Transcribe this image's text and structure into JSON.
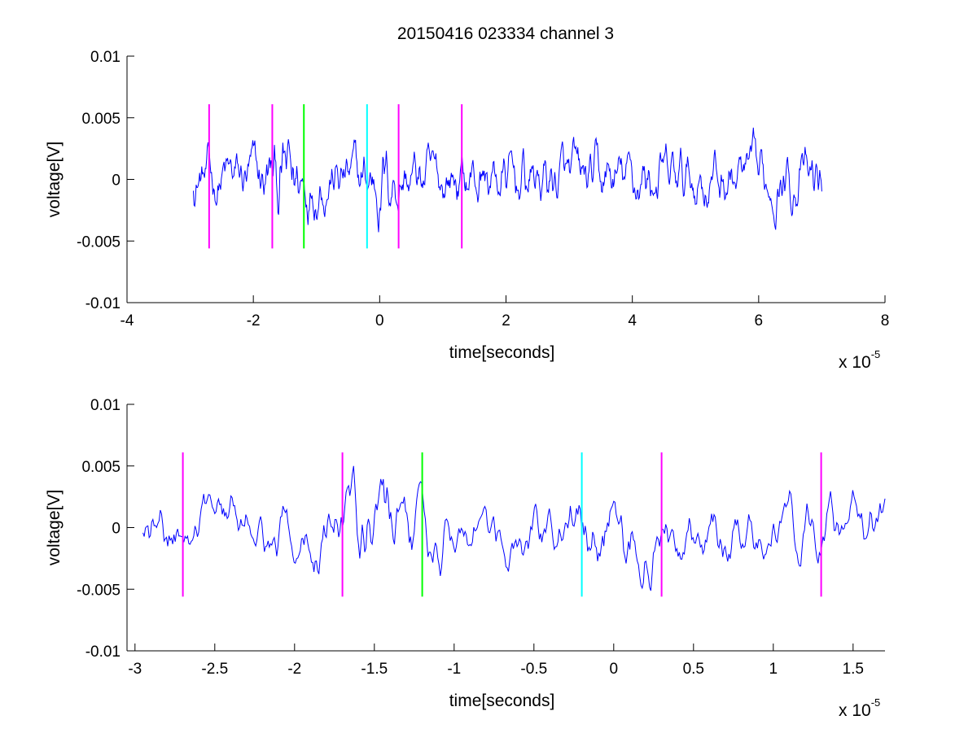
{
  "figure_title": "20150416 023334 channel 3",
  "colors": {
    "signal": "#0000ff",
    "marker_magenta": "#ff00ff",
    "marker_green": "#00ff00",
    "marker_cyan": "#00ffff",
    "axes": "#000000",
    "background": "#ffffff"
  },
  "chart_data": [
    {
      "type": "line",
      "title": "20150416 023334 channel 3",
      "xlabel": "time[seconds]",
      "ylabel": "voltage[V]",
      "x_exponent_base": "x 10",
      "x_exponent": "-5",
      "x_unit_scale": 1e-05,
      "xlim": [
        -4,
        8
      ],
      "ylim": [
        -0.01,
        0.01
      ],
      "x_ticks": [
        -4,
        -2,
        0,
        2,
        4,
        6,
        8
      ],
      "x_tick_labels": [
        "-4",
        "-2",
        "0",
        "2",
        "4",
        "6",
        "8"
      ],
      "y_ticks": [
        -0.01,
        -0.005,
        0,
        0.005,
        0.01
      ],
      "y_tick_labels": [
        "-0.01",
        "-0.005",
        "0",
        "0.005",
        "0.01"
      ],
      "grid": false,
      "series": [
        {
          "color": "#0000ff",
          "x_range": [
            -2.95,
            7.0
          ],
          "samples": 900,
          "description_y_envelope": [
            -0.005,
            0.0055
          ]
        }
      ],
      "markers": [
        {
          "x": -2.7,
          "color": "#ff00ff",
          "y_range": [
            -0.0056,
            0.0061
          ]
        },
        {
          "x": -1.7,
          "color": "#ff00ff",
          "y_range": [
            -0.0056,
            0.0061
          ]
        },
        {
          "x": -1.2,
          "color": "#00ff00",
          "y_range": [
            -0.0056,
            0.0061
          ]
        },
        {
          "x": -0.2,
          "color": "#00ffff",
          "y_range": [
            -0.0056,
            0.0061
          ]
        },
        {
          "x": 0.3,
          "color": "#ff00ff",
          "y_range": [
            -0.0056,
            0.0061
          ]
        },
        {
          "x": 1.3,
          "color": "#ff00ff",
          "y_range": [
            -0.0056,
            0.0061
          ]
        }
      ]
    },
    {
      "type": "line",
      "title": "",
      "xlabel": "time[seconds]",
      "ylabel": "voltage[V]",
      "x_exponent_base": "x 10",
      "x_exponent": "-5",
      "x_unit_scale": 1e-05,
      "xlim": [
        -3.05,
        1.7
      ],
      "ylim": [
        -0.01,
        0.01
      ],
      "x_ticks": [
        -3,
        -2.5,
        -2,
        -1.5,
        -1,
        -0.5,
        0,
        0.5,
        1,
        1.5
      ],
      "x_tick_labels": [
        "-3",
        "-2.5",
        "-2",
        "-1.5",
        "-1",
        "-0.5",
        "0",
        "0.5",
        "1",
        "1.5"
      ],
      "y_ticks": [
        -0.01,
        -0.005,
        0,
        0.005,
        0.01
      ],
      "y_tick_labels": [
        "-0.01",
        "-0.005",
        "0",
        "0.005",
        "0.01"
      ],
      "grid": false,
      "series": [
        {
          "color": "#0000ff",
          "x_range": [
            -2.95,
            1.7
          ],
          "samples": 600
        }
      ],
      "markers": [
        {
          "x": -2.7,
          "color": "#ff00ff",
          "y_range": [
            -0.0056,
            0.0061
          ]
        },
        {
          "x": -1.7,
          "color": "#ff00ff",
          "y_range": [
            -0.0056,
            0.0061
          ]
        },
        {
          "x": -1.2,
          "color": "#00ff00",
          "y_range": [
            -0.0056,
            0.0061
          ]
        },
        {
          "x": -0.2,
          "color": "#00ffff",
          "y_range": [
            -0.0056,
            0.0061
          ]
        },
        {
          "x": 0.3,
          "color": "#ff00ff",
          "y_range": [
            -0.0056,
            0.0061
          ]
        },
        {
          "x": 1.3,
          "color": "#ff00ff",
          "y_range": [
            -0.0056,
            0.0061
          ]
        }
      ]
    }
  ]
}
